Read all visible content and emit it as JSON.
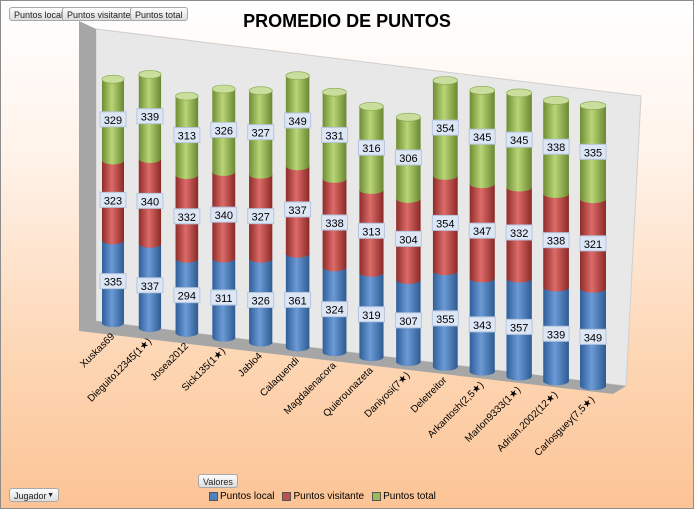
{
  "filter_buttons": [
    "Puntos local",
    "Puntos visitante",
    "Puntos total"
  ],
  "values_button": "Valores",
  "axis_field_button": "Jugador",
  "chart_data": {
    "type": "bar",
    "subtype": "3d-stacked-cylinder",
    "title": "PROMEDIO DE PUNTOS",
    "categories": [
      "Xuskas69",
      "Dieguito12345(1★)",
      "Josea2012",
      "Sick135(1★)",
      "Jablo4",
      "Calaquendi",
      "Magdalenacora",
      "Quierounazeta",
      "Daniyosi(7★)",
      "Deletreitor",
      "Arkantosh(2,5★)",
      "Marlon9333(1★)",
      "Adrian.2002(12★)",
      "Carlosguey(7,5★)"
    ],
    "series": [
      {
        "name": "Puntos local",
        "color": "#4f81bd",
        "values": [
          335,
          337,
          294,
          311,
          326,
          361,
          324,
          319,
          307,
          355,
          343,
          357,
          339,
          349
        ]
      },
      {
        "name": "Puntos visitante",
        "color": "#c0504d",
        "values": [
          323,
          340,
          332,
          340,
          327,
          337,
          338,
          313,
          304,
          354,
          347,
          332,
          338,
          321
        ]
      },
      {
        "name": "Puntos total",
        "color": "#9bbb59",
        "values": [
          329,
          339,
          313,
          326,
          327,
          349,
          331,
          316,
          306,
          354,
          345,
          345,
          338,
          335
        ]
      }
    ],
    "legend": "bottom",
    "grid": false
  }
}
